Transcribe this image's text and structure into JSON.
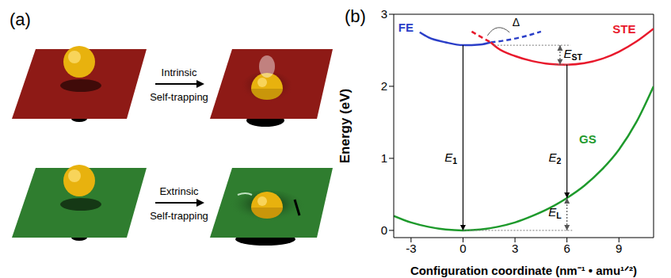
{
  "panel_a": {
    "label": "(a)",
    "rows": [
      {
        "process": "Intrinsic",
        "arrow_text": "Self-trapping"
      },
      {
        "process": "Extrinsic",
        "arrow_text": "Self-trapping"
      }
    ]
  },
  "chart_data": {
    "type": "line",
    "panel_label": "(b)",
    "x_label": "Configuration coordinate (nm⁻¹ • amu¹ᐟ²)",
    "y_label": "Energy (eV)",
    "xlim": [
      -4,
      11
    ],
    "xticks": [
      -3,
      0,
      3,
      6,
      9
    ],
    "ylim": [
      -0.1,
      3
    ],
    "yticks": [
      0,
      1,
      2,
      3
    ],
    "grid": false,
    "series": [
      {
        "name": "FE",
        "color": "#2b3fc8",
        "segments": [
          {
            "line_style": "solid",
            "x": [
              -2.5,
              -2,
              -1,
              0,
              1,
              1.6
            ],
            "values": [
              2.75,
              2.68,
              2.61,
              2.57,
              2.58,
              2.61
            ]
          },
          {
            "line_style": "dashed",
            "x": [
              1.6,
              2.5,
              3.5,
              4.5
            ],
            "values": [
              2.61,
              2.64,
              2.69,
              2.76
            ]
          }
        ]
      },
      {
        "name": "STE",
        "color": "#e8192c",
        "segments": [
          {
            "line_style": "dashed",
            "x": [
              0.5,
              1,
              1.6
            ],
            "values": [
              2.76,
              2.69,
              2.61
            ]
          },
          {
            "line_style": "solid",
            "x": [
              1.6,
              2,
              3,
              4,
              5,
              6,
              7,
              8,
              9,
              10,
              11
            ],
            "values": [
              2.61,
              2.53,
              2.42,
              2.35,
              2.31,
              2.3,
              2.32,
              2.38,
              2.48,
              2.62,
              2.8
            ]
          }
        ]
      },
      {
        "name": "GS",
        "color": "#1e9a2c",
        "segments": [
          {
            "line_style": "solid",
            "x": [
              -4,
              -3,
              -2,
              -1,
              0,
              1,
              2,
              3,
              4,
              5,
              6,
              7,
              8,
              9,
              10,
              11
            ],
            "values": [
              0.2,
              0.11,
              0.05,
              0.012,
              0,
              0.012,
              0.05,
              0.11,
              0.2,
              0.31,
              0.45,
              0.62,
              0.84,
              1.12,
              1.5,
              2.0
            ]
          }
        ]
      }
    ],
    "transitions": [
      {
        "label": "E1",
        "x": 0,
        "from": 2.57,
        "to": 0
      },
      {
        "label": "E2",
        "x": 6,
        "from": 2.3,
        "to": 0.45
      },
      {
        "label": "EST",
        "x": 5.6,
        "from": 2.57,
        "to": 2.3
      },
      {
        "label": "EL",
        "x": 6,
        "from": 0.45,
        "to": 0
      }
    ],
    "annotations": [
      {
        "label": "Δ"
      }
    ]
  }
}
